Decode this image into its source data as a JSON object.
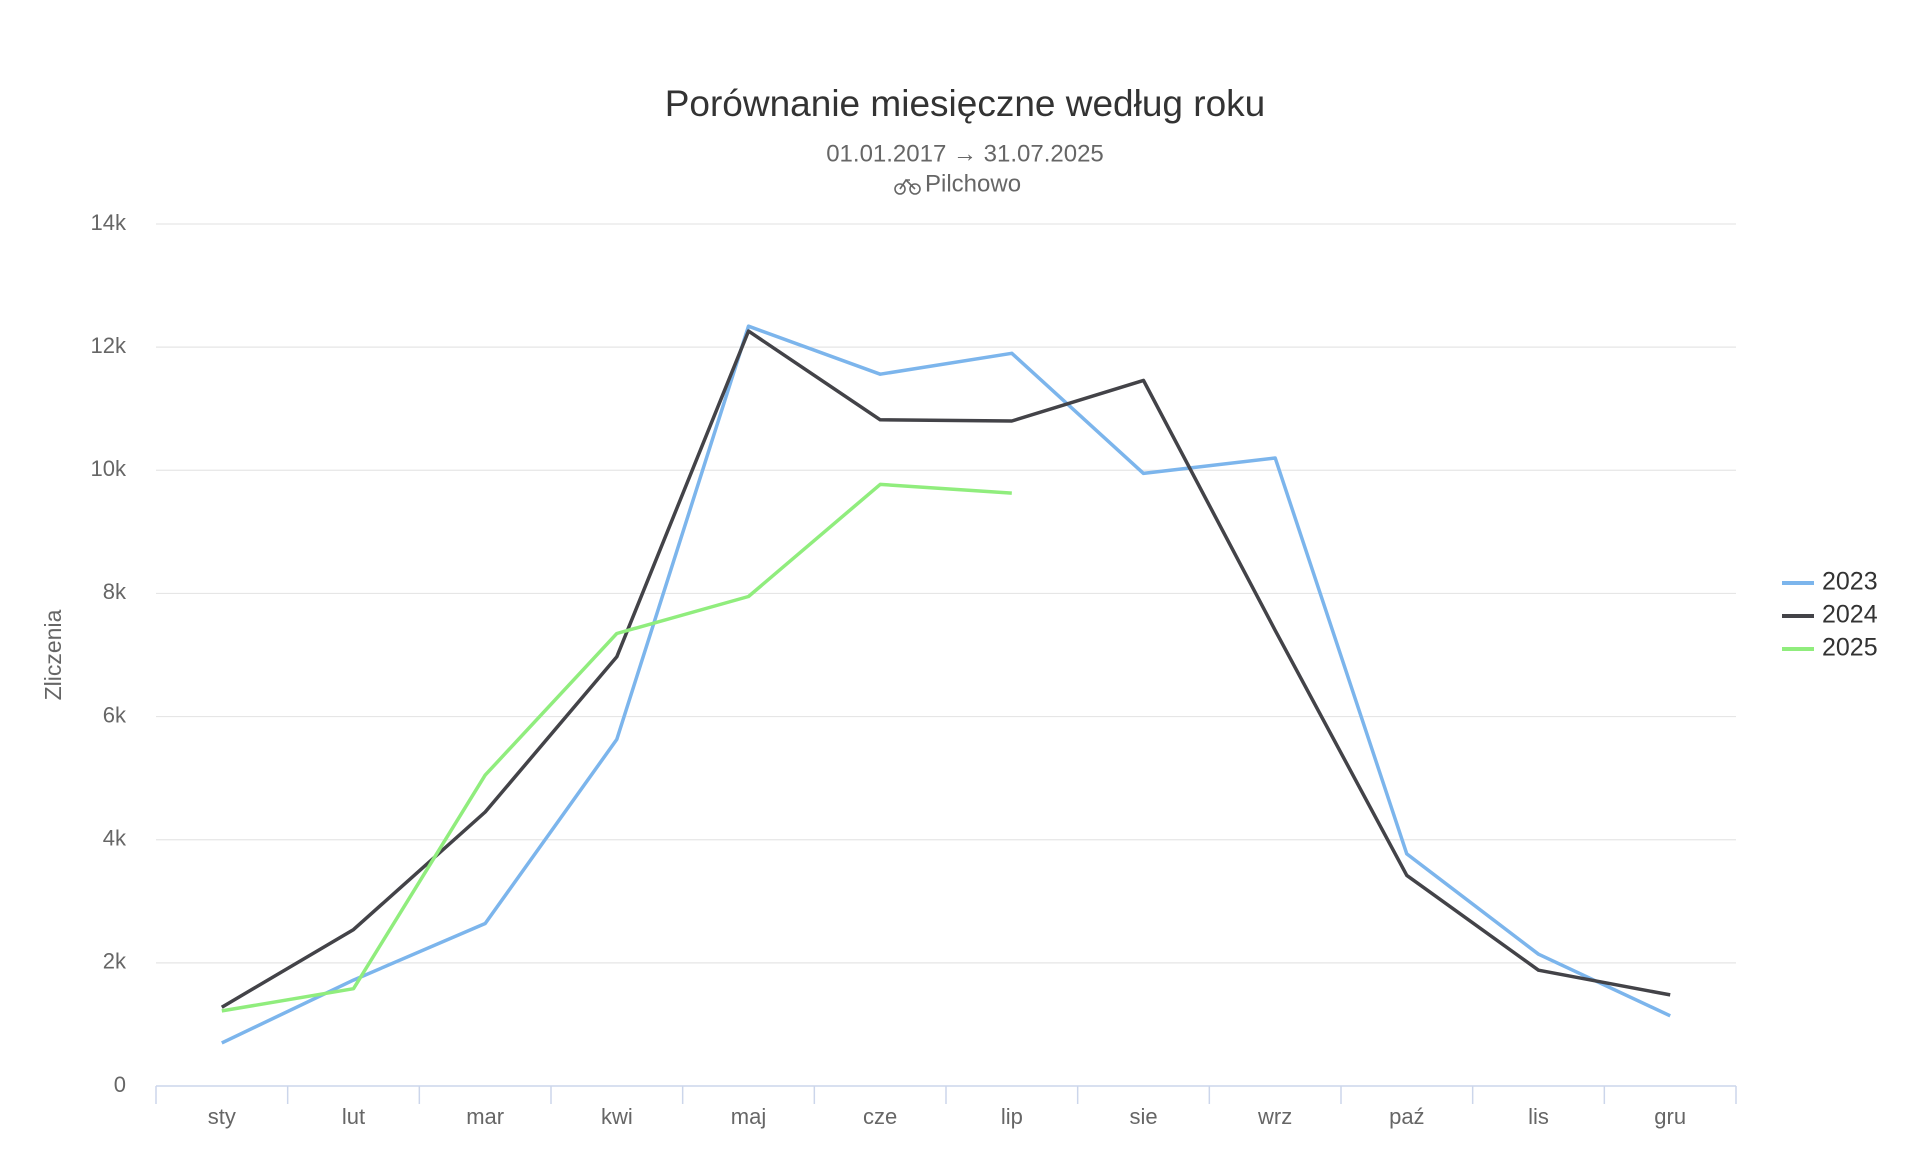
{
  "chart_data": {
    "type": "line",
    "title": "Porównanie miesięczne według roku",
    "subtitle": "01.01.2017 → 31.07.2025",
    "location": "Pilchowo",
    "ylabel": "Zliczenia",
    "categories": [
      "sty",
      "lut",
      "mar",
      "kwi",
      "maj",
      "cze",
      "lip",
      "sie",
      "wrz",
      "paź",
      "lis",
      "gru"
    ],
    "series": [
      {
        "name": "2023",
        "color": "#7cb5ec",
        "values": [
          700,
          1720,
          2640,
          5630,
          12340,
          11560,
          11900,
          9950,
          10200,
          3770,
          2140,
          1140
        ]
      },
      {
        "name": "2024",
        "color": "#434348",
        "values": [
          1280,
          2540,
          4450,
          6970,
          12260,
          10820,
          10800,
          11460,
          7400,
          3420,
          1880,
          1480
        ]
      },
      {
        "name": "2025",
        "color": "#90ed7d",
        "values": [
          1220,
          1580,
          5050,
          7350,
          7950,
          9770,
          9630,
          null,
          null,
          null,
          null,
          null
        ]
      }
    ],
    "ylim": [
      0,
      14000
    ],
    "yticks": [
      0,
      {
        "value": 2000,
        "label": "2k"
      },
      {
        "value": 4000,
        "label": "4k"
      },
      {
        "value": 6000,
        "label": "6k"
      },
      {
        "value": 8000,
        "label": "8k"
      },
      {
        "value": 10000,
        "label": "10k"
      },
      {
        "value": 12000,
        "label": "12k"
      },
      {
        "value": 14000,
        "label": "14k"
      }
    ],
    "grid": true,
    "legend": "right"
  }
}
